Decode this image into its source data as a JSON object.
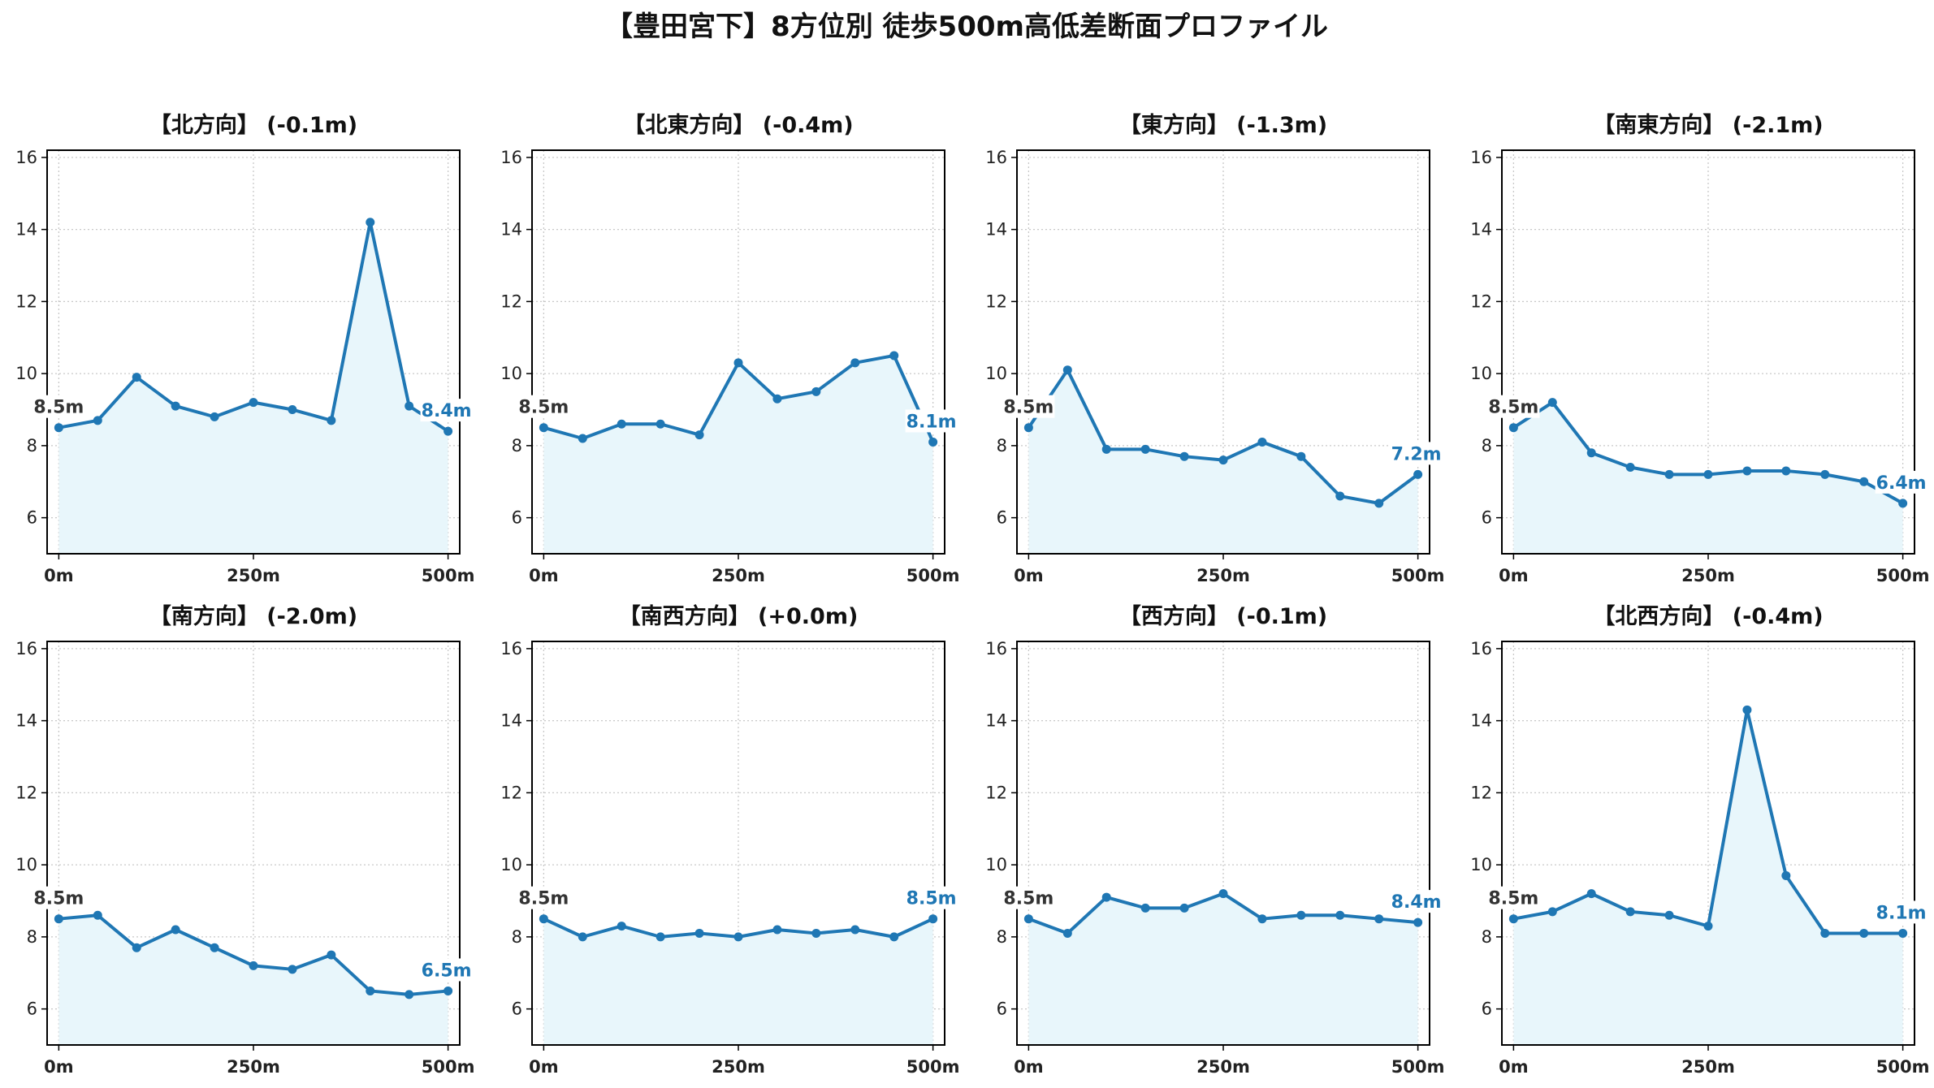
{
  "figure": {
    "title": "【豊田宮下】8方位別 徒歩500m高低差断面プロファイル"
  },
  "colors": {
    "line": "#1f77b4",
    "fill": "#e8f6fb",
    "start_label": "#333333",
    "end_label": "#1f77b4",
    "grid": "#c8c8c8"
  },
  "chart_data": [
    {
      "type": "area",
      "title": "【北方向】 (-0.1m)",
      "x": [
        0,
        50,
        100,
        150,
        200,
        250,
        300,
        350,
        400,
        450,
        500
      ],
      "values": [
        8.5,
        8.7,
        9.9,
        9.1,
        8.8,
        9.2,
        9.0,
        8.7,
        14.2,
        9.1,
        8.4
      ],
      "start_label": "8.5m",
      "end_label": "8.4m",
      "xticks": [
        0,
        250,
        500
      ],
      "xtick_labels": [
        "0m",
        "250m",
        "500m"
      ],
      "yticks": [
        6,
        8,
        10,
        12,
        14,
        16
      ],
      "xlim": [
        -15,
        515
      ],
      "ylim": [
        5,
        16.2
      ],
      "grid": true
    },
    {
      "type": "area",
      "title": "【北東方向】 (-0.4m)",
      "x": [
        0,
        50,
        100,
        150,
        200,
        250,
        300,
        350,
        400,
        450,
        500
      ],
      "values": [
        8.5,
        8.2,
        8.6,
        8.6,
        8.3,
        10.3,
        9.3,
        9.5,
        10.3,
        10.5,
        8.1
      ],
      "start_label": "8.5m",
      "end_label": "8.1m",
      "xticks": [
        0,
        250,
        500
      ],
      "xtick_labels": [
        "0m",
        "250m",
        "500m"
      ],
      "yticks": [
        6,
        8,
        10,
        12,
        14,
        16
      ],
      "xlim": [
        -15,
        515
      ],
      "ylim": [
        5,
        16.2
      ],
      "grid": true
    },
    {
      "type": "area",
      "title": "【東方向】 (-1.3m)",
      "x": [
        0,
        50,
        100,
        150,
        200,
        250,
        300,
        350,
        400,
        450,
        500
      ],
      "values": [
        8.5,
        10.1,
        7.9,
        7.9,
        7.7,
        7.6,
        8.1,
        7.7,
        6.6,
        6.4,
        7.2
      ],
      "start_label": "8.5m",
      "end_label": "7.2m",
      "xticks": [
        0,
        250,
        500
      ],
      "xtick_labels": [
        "0m",
        "250m",
        "500m"
      ],
      "yticks": [
        6,
        8,
        10,
        12,
        14,
        16
      ],
      "xlim": [
        -15,
        515
      ],
      "ylim": [
        5,
        16.2
      ],
      "grid": true
    },
    {
      "type": "area",
      "title": "【南東方向】 (-2.1m)",
      "x": [
        0,
        50,
        100,
        150,
        200,
        250,
        300,
        350,
        400,
        450,
        500
      ],
      "values": [
        8.5,
        9.2,
        7.8,
        7.4,
        7.2,
        7.2,
        7.3,
        7.3,
        7.2,
        7.0,
        6.4
      ],
      "start_label": "8.5m",
      "end_label": "6.4m",
      "xticks": [
        0,
        250,
        500
      ],
      "xtick_labels": [
        "0m",
        "250m",
        "500m"
      ],
      "yticks": [
        6,
        8,
        10,
        12,
        14,
        16
      ],
      "xlim": [
        -15,
        515
      ],
      "ylim": [
        5,
        16.2
      ],
      "grid": true
    },
    {
      "type": "area",
      "title": "【南方向】 (-2.0m)",
      "x": [
        0,
        50,
        100,
        150,
        200,
        250,
        300,
        350,
        400,
        450,
        500
      ],
      "values": [
        8.5,
        8.6,
        7.7,
        8.2,
        7.7,
        7.2,
        7.1,
        7.5,
        6.5,
        6.4,
        6.5
      ],
      "start_label": "8.5m",
      "end_label": "6.5m",
      "xticks": [
        0,
        250,
        500
      ],
      "xtick_labels": [
        "0m",
        "250m",
        "500m"
      ],
      "yticks": [
        6,
        8,
        10,
        12,
        14,
        16
      ],
      "xlim": [
        -15,
        515
      ],
      "ylim": [
        5,
        16.2
      ],
      "grid": true
    },
    {
      "type": "area",
      "title": "【南西方向】 (+0.0m)",
      "x": [
        0,
        50,
        100,
        150,
        200,
        250,
        300,
        350,
        400,
        450,
        500
      ],
      "values": [
        8.5,
        8.0,
        8.3,
        8.0,
        8.1,
        8.0,
        8.2,
        8.1,
        8.2,
        8.0,
        8.5
      ],
      "start_label": "8.5m",
      "end_label": "8.5m",
      "xticks": [
        0,
        250,
        500
      ],
      "xtick_labels": [
        "0m",
        "250m",
        "500m"
      ],
      "yticks": [
        6,
        8,
        10,
        12,
        14,
        16
      ],
      "xlim": [
        -15,
        515
      ],
      "ylim": [
        5,
        16.2
      ],
      "grid": true
    },
    {
      "type": "area",
      "title": "【西方向】 (-0.1m)",
      "x": [
        0,
        50,
        100,
        150,
        200,
        250,
        300,
        350,
        400,
        450,
        500
      ],
      "values": [
        8.5,
        8.1,
        9.1,
        8.8,
        8.8,
        9.2,
        8.5,
        8.6,
        8.6,
        8.5,
        8.4
      ],
      "start_label": "8.5m",
      "end_label": "8.4m",
      "xticks": [
        0,
        250,
        500
      ],
      "xtick_labels": [
        "0m",
        "250m",
        "500m"
      ],
      "yticks": [
        6,
        8,
        10,
        12,
        14,
        16
      ],
      "xlim": [
        -15,
        515
      ],
      "ylim": [
        5,
        16.2
      ],
      "grid": true
    },
    {
      "type": "area",
      "title": "【北西方向】 (-0.4m)",
      "x": [
        0,
        50,
        100,
        150,
        200,
        250,
        300,
        350,
        400,
        450,
        500
      ],
      "values": [
        8.5,
        8.7,
        9.2,
        8.7,
        8.6,
        8.3,
        14.3,
        9.7,
        8.1,
        8.1,
        8.1
      ],
      "start_label": "8.5m",
      "end_label": "8.1m",
      "xticks": [
        0,
        250,
        500
      ],
      "xtick_labels": [
        "0m",
        "250m",
        "500m"
      ],
      "yticks": [
        6,
        8,
        10,
        12,
        14,
        16
      ],
      "xlim": [
        -15,
        515
      ],
      "ylim": [
        5,
        16.2
      ],
      "grid": true
    }
  ]
}
